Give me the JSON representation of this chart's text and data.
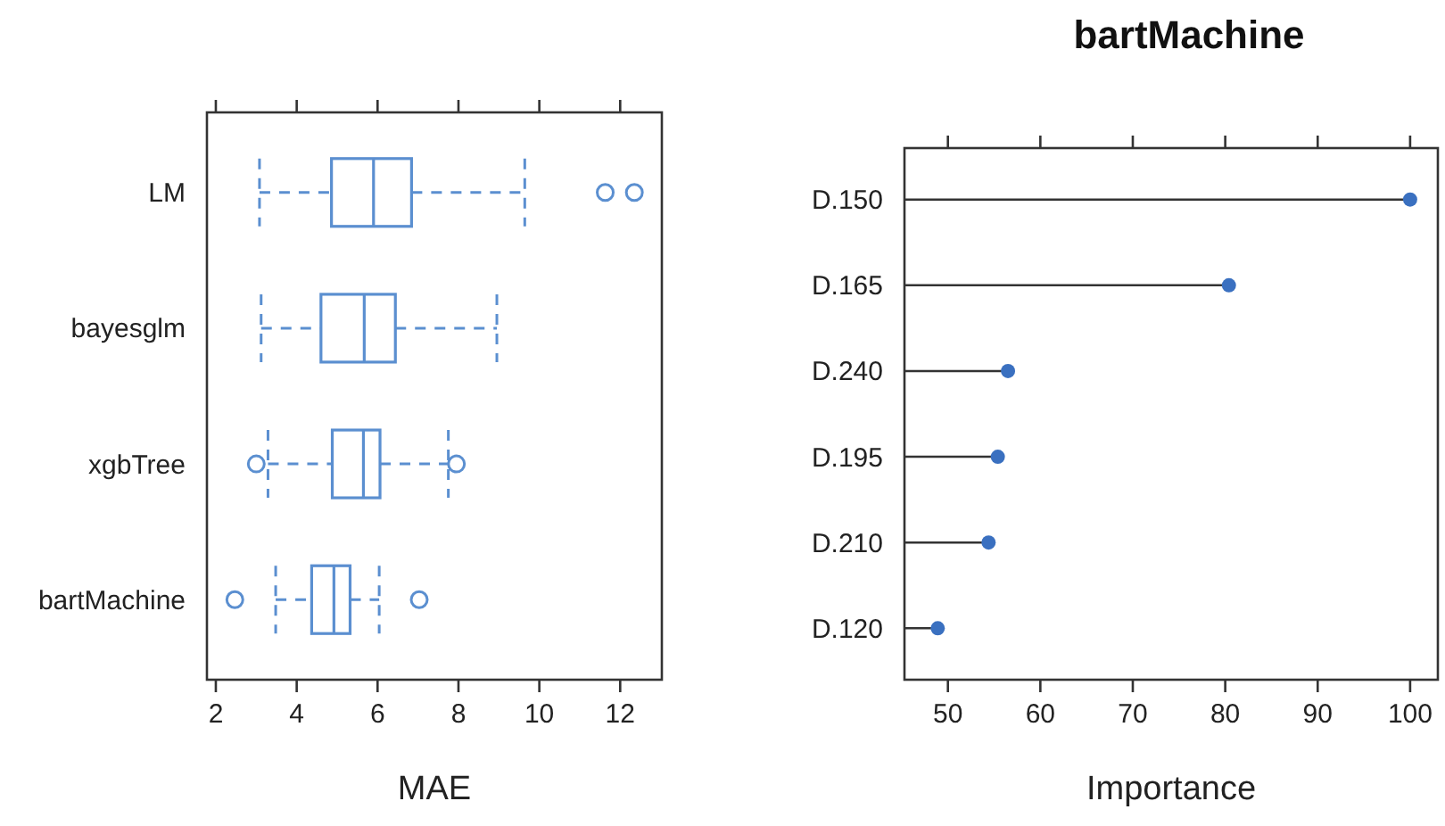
{
  "chart_data": [
    {
      "type": "box",
      "orientation": "horizontal",
      "categories": [
        "LM",
        "bayesglm",
        "xgbTree",
        "bartMachine"
      ],
      "color": "#5b8fd0",
      "boxes": [
        {
          "low": 3.08,
          "q1": 4.86,
          "median": 5.9,
          "q3": 6.84,
          "high": 9.64,
          "outliers": [
            11.63,
            12.35
          ]
        },
        {
          "low": 3.12,
          "q1": 4.6,
          "median": 5.67,
          "q3": 6.44,
          "high": 8.95
        },
        {
          "low": 3.29,
          "q1": 4.88,
          "median": 5.65,
          "q3": 6.06,
          "high": 7.75,
          "outliers": [
            3.0,
            7.95
          ]
        },
        {
          "low": 3.48,
          "q1": 4.37,
          "median": 4.92,
          "q3": 5.32,
          "high": 6.04,
          "outliers": [
            2.47,
            7.03
          ]
        }
      ],
      "xlim": [
        1.78,
        13.03
      ],
      "xticks": [
        2,
        4,
        6,
        8,
        10,
        12
      ],
      "xlabel": "MAE"
    },
    {
      "type": "lollipop",
      "orientation": "horizontal",
      "title": "bartMachine",
      "categories": [
        "D.150",
        "D.165",
        "D.240",
        "D.195",
        "D.210",
        "D.120"
      ],
      "color": "#3a70c0",
      "values": [
        100,
        80.4,
        56.5,
        55.4,
        54.4,
        48.9
      ],
      "xlim": [
        45.3,
        103
      ],
      "xticks": [
        50,
        60,
        70,
        80,
        90,
        100
      ],
      "xlabel": "Importance",
      "marker": "circle"
    }
  ]
}
